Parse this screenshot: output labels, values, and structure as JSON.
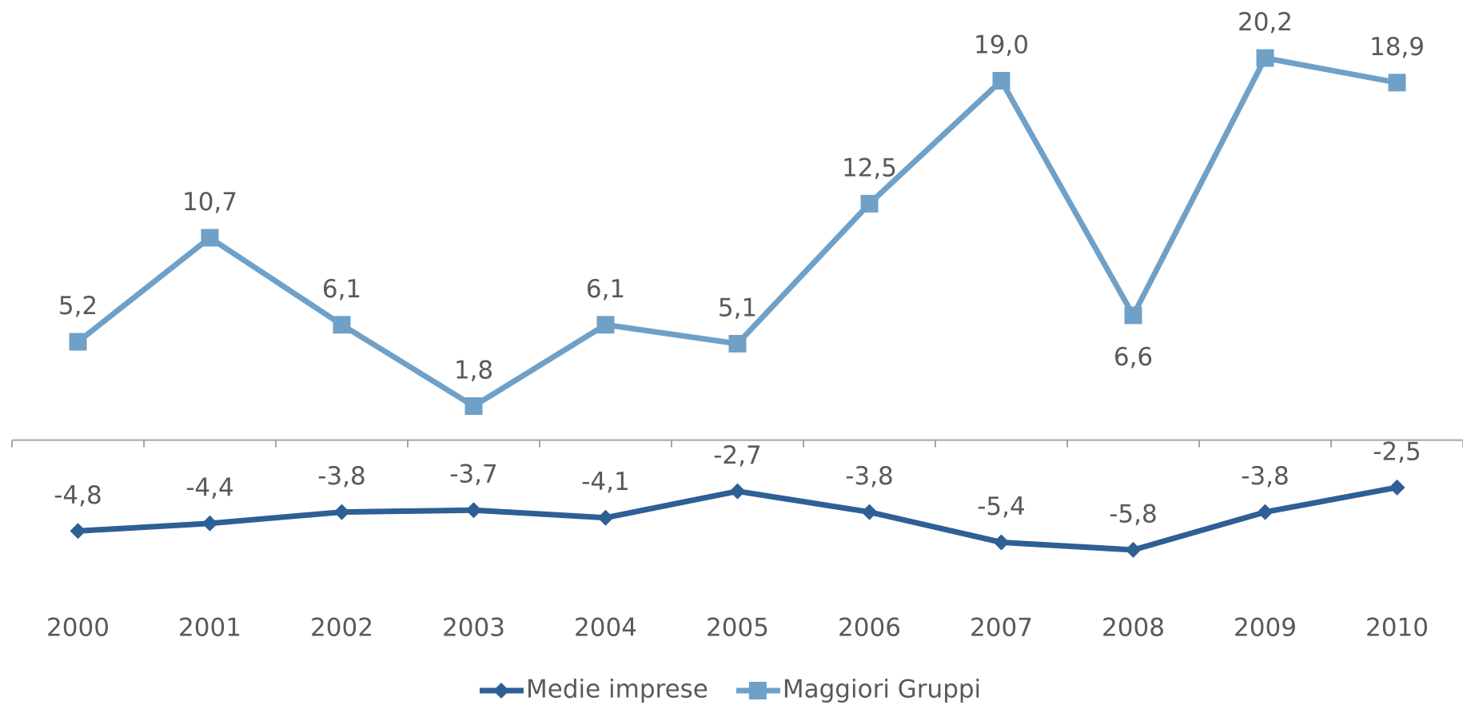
{
  "chart_data": {
    "type": "line",
    "categories": [
      "2000",
      "2001",
      "2002",
      "2003",
      "2004",
      "2005",
      "2006",
      "2007",
      "2008",
      "2009",
      "2010"
    ],
    "series": [
      {
        "name": "Medie imprese",
        "color": "#2e5f95",
        "marker": "diamond",
        "values": [
          -4.8,
          -4.4,
          -3.8,
          -3.7,
          -4.1,
          -2.7,
          -3.8,
          -5.4,
          -5.8,
          -3.8,
          -2.5
        ],
        "value_labels": [
          "-4,8",
          "-4,4",
          "-3,8",
          "-3,7",
          "-4,1",
          "-2,7",
          "-3,8",
          "-5,4",
          "-5,8",
          "-3,8",
          "-2,5"
        ]
      },
      {
        "name": "Maggiori Gruppi",
        "color": "#6fa0c8",
        "marker": "square",
        "values": [
          5.2,
          10.7,
          6.1,
          1.8,
          6.1,
          5.1,
          12.5,
          19.0,
          6.6,
          20.2,
          18.9
        ],
        "value_labels": [
          "5,2",
          "10,7",
          "6,1",
          "1,8",
          "6,1",
          "5,1",
          "12,5",
          "19,0",
          "6,6",
          "20,2",
          "18,9"
        ]
      }
    ],
    "ylim": [
      -8,
      22
    ],
    "legend": "bottom"
  }
}
